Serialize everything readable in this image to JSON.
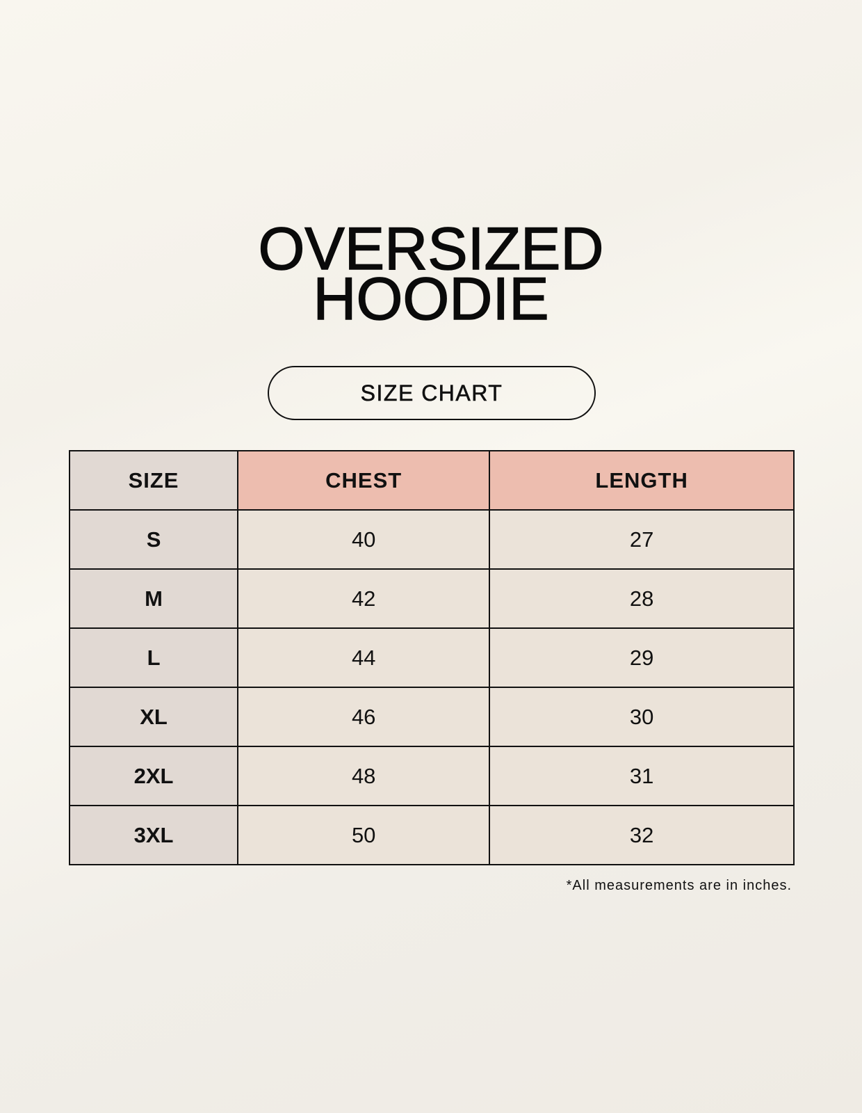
{
  "title": {
    "line1": "OVERSIZED",
    "line2": "HOODIE"
  },
  "subtitle": "SIZE CHART",
  "colors": {
    "size_column": "#e1d9d3",
    "measure_header": "#edbdaf",
    "cell": "#ebe3d9"
  },
  "table": {
    "headers": [
      "SIZE",
      "CHEST",
      "LENGTH"
    ],
    "rows": [
      [
        "S",
        "40",
        "27"
      ],
      [
        "M",
        "42",
        "28"
      ],
      [
        "L",
        "44",
        "29"
      ],
      [
        "XL",
        "46",
        "30"
      ],
      [
        "2XL",
        "48",
        "31"
      ],
      [
        "3XL",
        "50",
        "32"
      ]
    ]
  },
  "footnote": "*All measurements are in inches."
}
